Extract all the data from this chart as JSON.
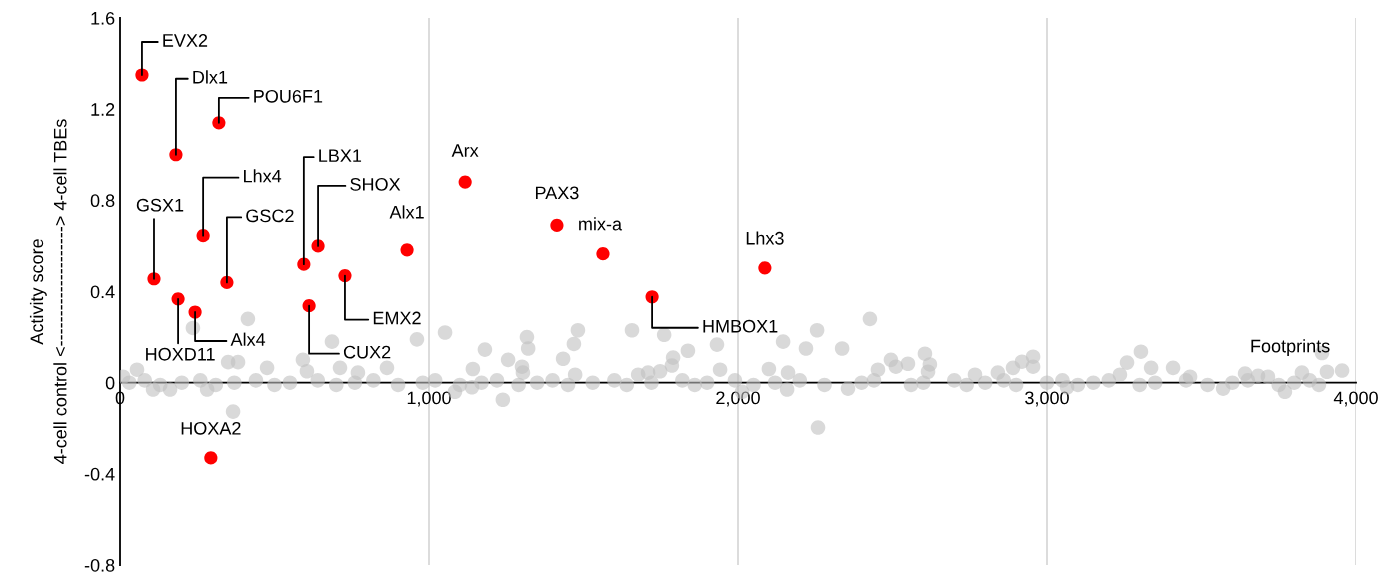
{
  "chart_data": {
    "type": "scatter",
    "ylabel": "Activity score\n4-cell control <--------------------> 4-cell TBEs",
    "xlim": [
      0,
      4000
    ],
    "ylim": [
      -0.8,
      1.6
    ],
    "xticks": [
      {
        "value": 0,
        "label": "0"
      },
      {
        "value": 1000,
        "label": "1,000"
      },
      {
        "value": 2000,
        "label": "2,000"
      },
      {
        "value": 3000,
        "label": "3,000"
      },
      {
        "value": 4000,
        "label": "4,000"
      }
    ],
    "yticks": [
      -0.8,
      -0.4,
      0,
      0.4,
      0.8,
      1.2,
      1.6
    ],
    "grid": "x",
    "marker": "circle",
    "series": [
      {
        "name": "Footprints",
        "color": "#bfbfbf",
        "x": [
          414,
          236,
          961,
          686,
          592,
          605,
          350,
          382,
          476,
          55,
          712,
          770,
          864,
          366,
          10,
          107,
          162,
          282,
          1052,
          1317,
          1321,
          1181,
          1256,
          1482,
          1469,
          1434,
          1657,
          1761,
          1838,
          1790,
          1786,
          1748,
          1677,
          1709,
          1932,
          1942,
          1142,
          1301,
          1304,
          1473,
          1239,
          1084,
          1139,
          2427,
          2256,
          2146,
          2220,
          2337,
          2100,
          2162,
          2495,
          2511,
          2550,
          2453,
          2605,
          2621,
          2615,
          2259,
          2013,
          2955,
          2919,
          2955,
          2890,
          2841,
          2767,
          2159,
          2356,
          3304,
          3259,
          3337,
          3408,
          3236,
          3463,
          3641,
          3683,
          3715,
          3770,
          3825,
          3906,
          3890,
          3065,
          3570,
          30,
          80,
          130,
          200,
          260,
          310,
          370,
          440,
          500,
          550,
          640,
          700,
          760,
          820,
          900,
          980,
          1020,
          1100,
          1170,
          1220,
          1290,
          1350,
          1400,
          1450,
          1530,
          1600,
          1640,
          1720,
          1820,
          1860,
          1900,
          1990,
          2050,
          2120,
          2200,
          2280,
          2400,
          2440,
          2560,
          2600,
          2700,
          2740,
          2800,
          2860,
          2900,
          3000,
          3050,
          3100,
          3150,
          3200,
          3300,
          3350,
          3450,
          3520,
          3600,
          3650,
          3750,
          3800,
          3850,
          3880,
          3955
        ],
        "values": [
          0.28,
          0.24,
          0.19,
          0.18,
          0.1,
          0.05,
          0.09,
          0.09,
          0.065,
          0.057,
          0.065,
          0.044,
          0.065,
          -0.127,
          0.026,
          -0.03,
          -0.03,
          -0.03,
          0.22,
          0.2,
          0.15,
          0.145,
          0.1,
          0.23,
          0.17,
          0.105,
          0.23,
          0.21,
          0.14,
          0.11,
          0.075,
          0.05,
          0.035,
          0.044,
          0.167,
          0.057,
          0.06,
          0.07,
          0.044,
          0.035,
          -0.075,
          -0.04,
          -0.02,
          0.28,
          0.23,
          0.18,
          0.15,
          0.15,
          0.06,
          0.044,
          0.1,
          0.07,
          0.083,
          0.057,
          0.127,
          0.08,
          0.048,
          -0.197,
          -0.04,
          0.114,
          0.092,
          0.07,
          0.065,
          0.044,
          0.035,
          -0.03,
          -0.026,
          0.136,
          0.088,
          0.065,
          0.065,
          0.035,
          0.026,
          0.04,
          0.03,
          0.026,
          -0.04,
          0.044,
          0.048,
          0.13,
          -0.02,
          -0.026,
          0,
          0.01,
          -0.01,
          0,
          0.01,
          -0.01,
          0,
          0.01,
          -0.01,
          0,
          0.01,
          -0.01,
          0,
          0.01,
          -0.01,
          0,
          0.01,
          -0.01,
          0,
          0.01,
          -0.01,
          0,
          0.01,
          -0.01,
          0,
          0.01,
          -0.01,
          0,
          0.01,
          -0.01,
          0,
          0.01,
          -0.01,
          0,
          0.01,
          -0.01,
          0,
          0.01,
          -0.01,
          0,
          0.01,
          -0.01,
          0,
          0.01,
          -0.01,
          0,
          0.01,
          -0.01,
          0,
          0.01,
          -0.01,
          0,
          0.01,
          -0.01,
          0,
          0.01,
          -0.01,
          0,
          0.01,
          -0.01,
          0.053
        ]
      },
      {
        "color": "#ff0000",
        "x": [
          71,
          181,
          320,
          269,
          110,
          346,
          188,
          243,
          595,
          641,
          612,
          728,
          929,
          1117,
          1414,
          1563,
          1722,
          2087,
          294
        ],
        "values": [
          1.35,
          1.0,
          1.14,
          0.645,
          0.456,
          0.44,
          0.368,
          0.31,
          0.52,
          0.6,
          0.338,
          0.47,
          0.583,
          0.88,
          0.69,
          0.566,
          0.377,
          0.504,
          -0.33
        ]
      }
    ],
    "annotations": [
      {
        "text": "EVX2",
        "x": 71,
        "y": 1.35
      },
      {
        "text": "Dlx1",
        "x": 181,
        "y": 1.0
      },
      {
        "text": "POU6F1",
        "x": 320,
        "y": 1.14
      },
      {
        "text": "Lhx4",
        "x": 269,
        "y": 0.645
      },
      {
        "text": "GSX1",
        "x": 110,
        "y": 0.456
      },
      {
        "text": "GSC2",
        "x": 346,
        "y": 0.44
      },
      {
        "text": "HOXD11",
        "x": 188,
        "y": 0.368
      },
      {
        "text": "Alx4",
        "x": 243,
        "y": 0.31
      },
      {
        "text": "LBX1",
        "x": 595,
        "y": 0.52
      },
      {
        "text": "SHOX",
        "x": 641,
        "y": 0.6
      },
      {
        "text": "CUX2",
        "x": 612,
        "y": 0.338
      },
      {
        "text": "EMX2",
        "x": 728,
        "y": 0.47
      },
      {
        "text": "Alx1",
        "x": 929,
        "y": 0.583
      },
      {
        "text": "Arx",
        "x": 1117,
        "y": 0.88
      },
      {
        "text": "PAX3",
        "x": 1414,
        "y": 0.69
      },
      {
        "text": "mix-a",
        "x": 1563,
        "y": 0.566
      },
      {
        "text": "HMBOX1",
        "x": 1722,
        "y": 0.377
      },
      {
        "text": "Lhx3",
        "x": 2087,
        "y": 0.504
      },
      {
        "text": "HOXA2",
        "x": 294,
        "y": -0.33
      }
    ]
  }
}
